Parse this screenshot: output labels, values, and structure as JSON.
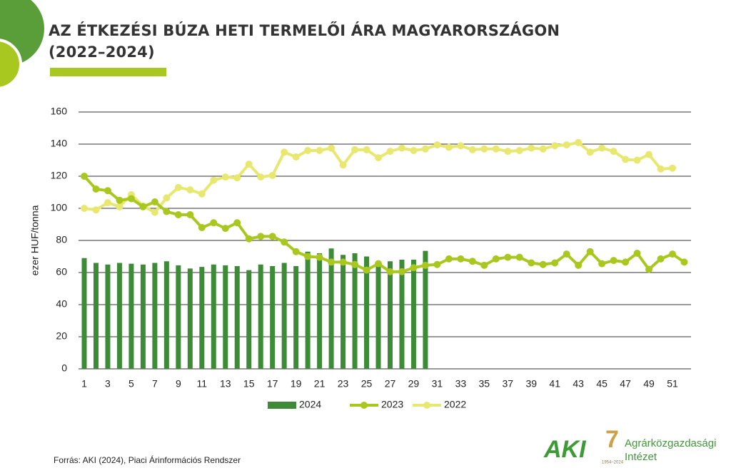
{
  "chart_data": {
    "type": "bar-line",
    "title": "AZ ÉTKEZÉSI BÚZA HETI TERMELŐI ÁRA MAGYARORSZÁGON (2022–2024)",
    "y_label": "ezer HUF/tonna",
    "source": "Forrás: AKI (2024), Piaci Árinformációs Rendszer",
    "logo": {
      "short": "AKI",
      "name_line1": "Agrárközgazdasági",
      "name_line2": "Intézet",
      "years": "1954–2024"
    },
    "categories": [
      1,
      null,
      3,
      null,
      5,
      null,
      7,
      null,
      9,
      null,
      11,
      null,
      13,
      null,
      15,
      null,
      17,
      null,
      19,
      null,
      21,
      null,
      23,
      null,
      25,
      null,
      27,
      null,
      29,
      null,
      31,
      null,
      33,
      null,
      35,
      null,
      37,
      null,
      39,
      null,
      41,
      null,
      43,
      null,
      45,
      null,
      47,
      null,
      49,
      null,
      51,
      null
    ],
    "ylim": [
      0,
      160
    ],
    "yticks": [
      0,
      20,
      40,
      60,
      80,
      100,
      120,
      140,
      160
    ],
    "grid": true,
    "legend": "bottom",
    "series": [
      {
        "name": "2024",
        "kind": "bar",
        "color": "#3d8b37",
        "values": [
          69,
          66,
          65,
          66,
          65.5,
          65,
          66,
          67,
          64.5,
          62.5,
          63.5,
          65,
          64.5,
          64,
          61.5,
          65,
          64,
          66,
          64,
          73,
          72,
          75,
          71,
          72,
          70,
          66,
          67,
          68,
          68,
          73.5,
          null,
          null,
          null,
          null,
          null,
          null,
          null,
          null,
          null,
          null,
          null,
          null,
          null,
          null,
          null,
          null,
          null,
          null,
          null,
          null,
          null,
          null
        ]
      },
      {
        "name": "2023",
        "kind": "line",
        "color": "#a8c820",
        "values": [
          120,
          112,
          111,
          105,
          106,
          101,
          104,
          98,
          96,
          96,
          88,
          91,
          87.5,
          91,
          81,
          82.5,
          82.5,
          79,
          73,
          70,
          69.5,
          66.5,
          66.5,
          65,
          61.5,
          65.5,
          60.5,
          60.5,
          63,
          64.5,
          65,
          68.5,
          68.5,
          67,
          64.5,
          68.5,
          69.5,
          69.5,
          66,
          65,
          66,
          71.5,
          64.5,
          73,
          65.5,
          67.5,
          66.5,
          72,
          62,
          68.5,
          71.5,
          66.5
        ]
      },
      {
        "name": "2022",
        "kind": "line",
        "color": "#e8e870",
        "values": [
          100,
          99,
          103.5,
          101,
          108.5,
          101.5,
          97.5,
          106.5,
          113,
          111.5,
          109,
          117.5,
          119.5,
          119,
          127.5,
          119.5,
          120.5,
          135,
          132,
          136,
          136,
          137.5,
          127,
          136.5,
          136.5,
          131.5,
          135.5,
          137.5,
          136,
          137,
          139.5,
          138,
          139,
          136.5,
          137,
          137,
          135.5,
          136,
          137.5,
          137,
          139,
          139.5,
          141,
          135,
          137.5,
          135.5,
          130.5,
          130,
          133.5,
          124.5,
          125,
          null
        ]
      }
    ]
  }
}
